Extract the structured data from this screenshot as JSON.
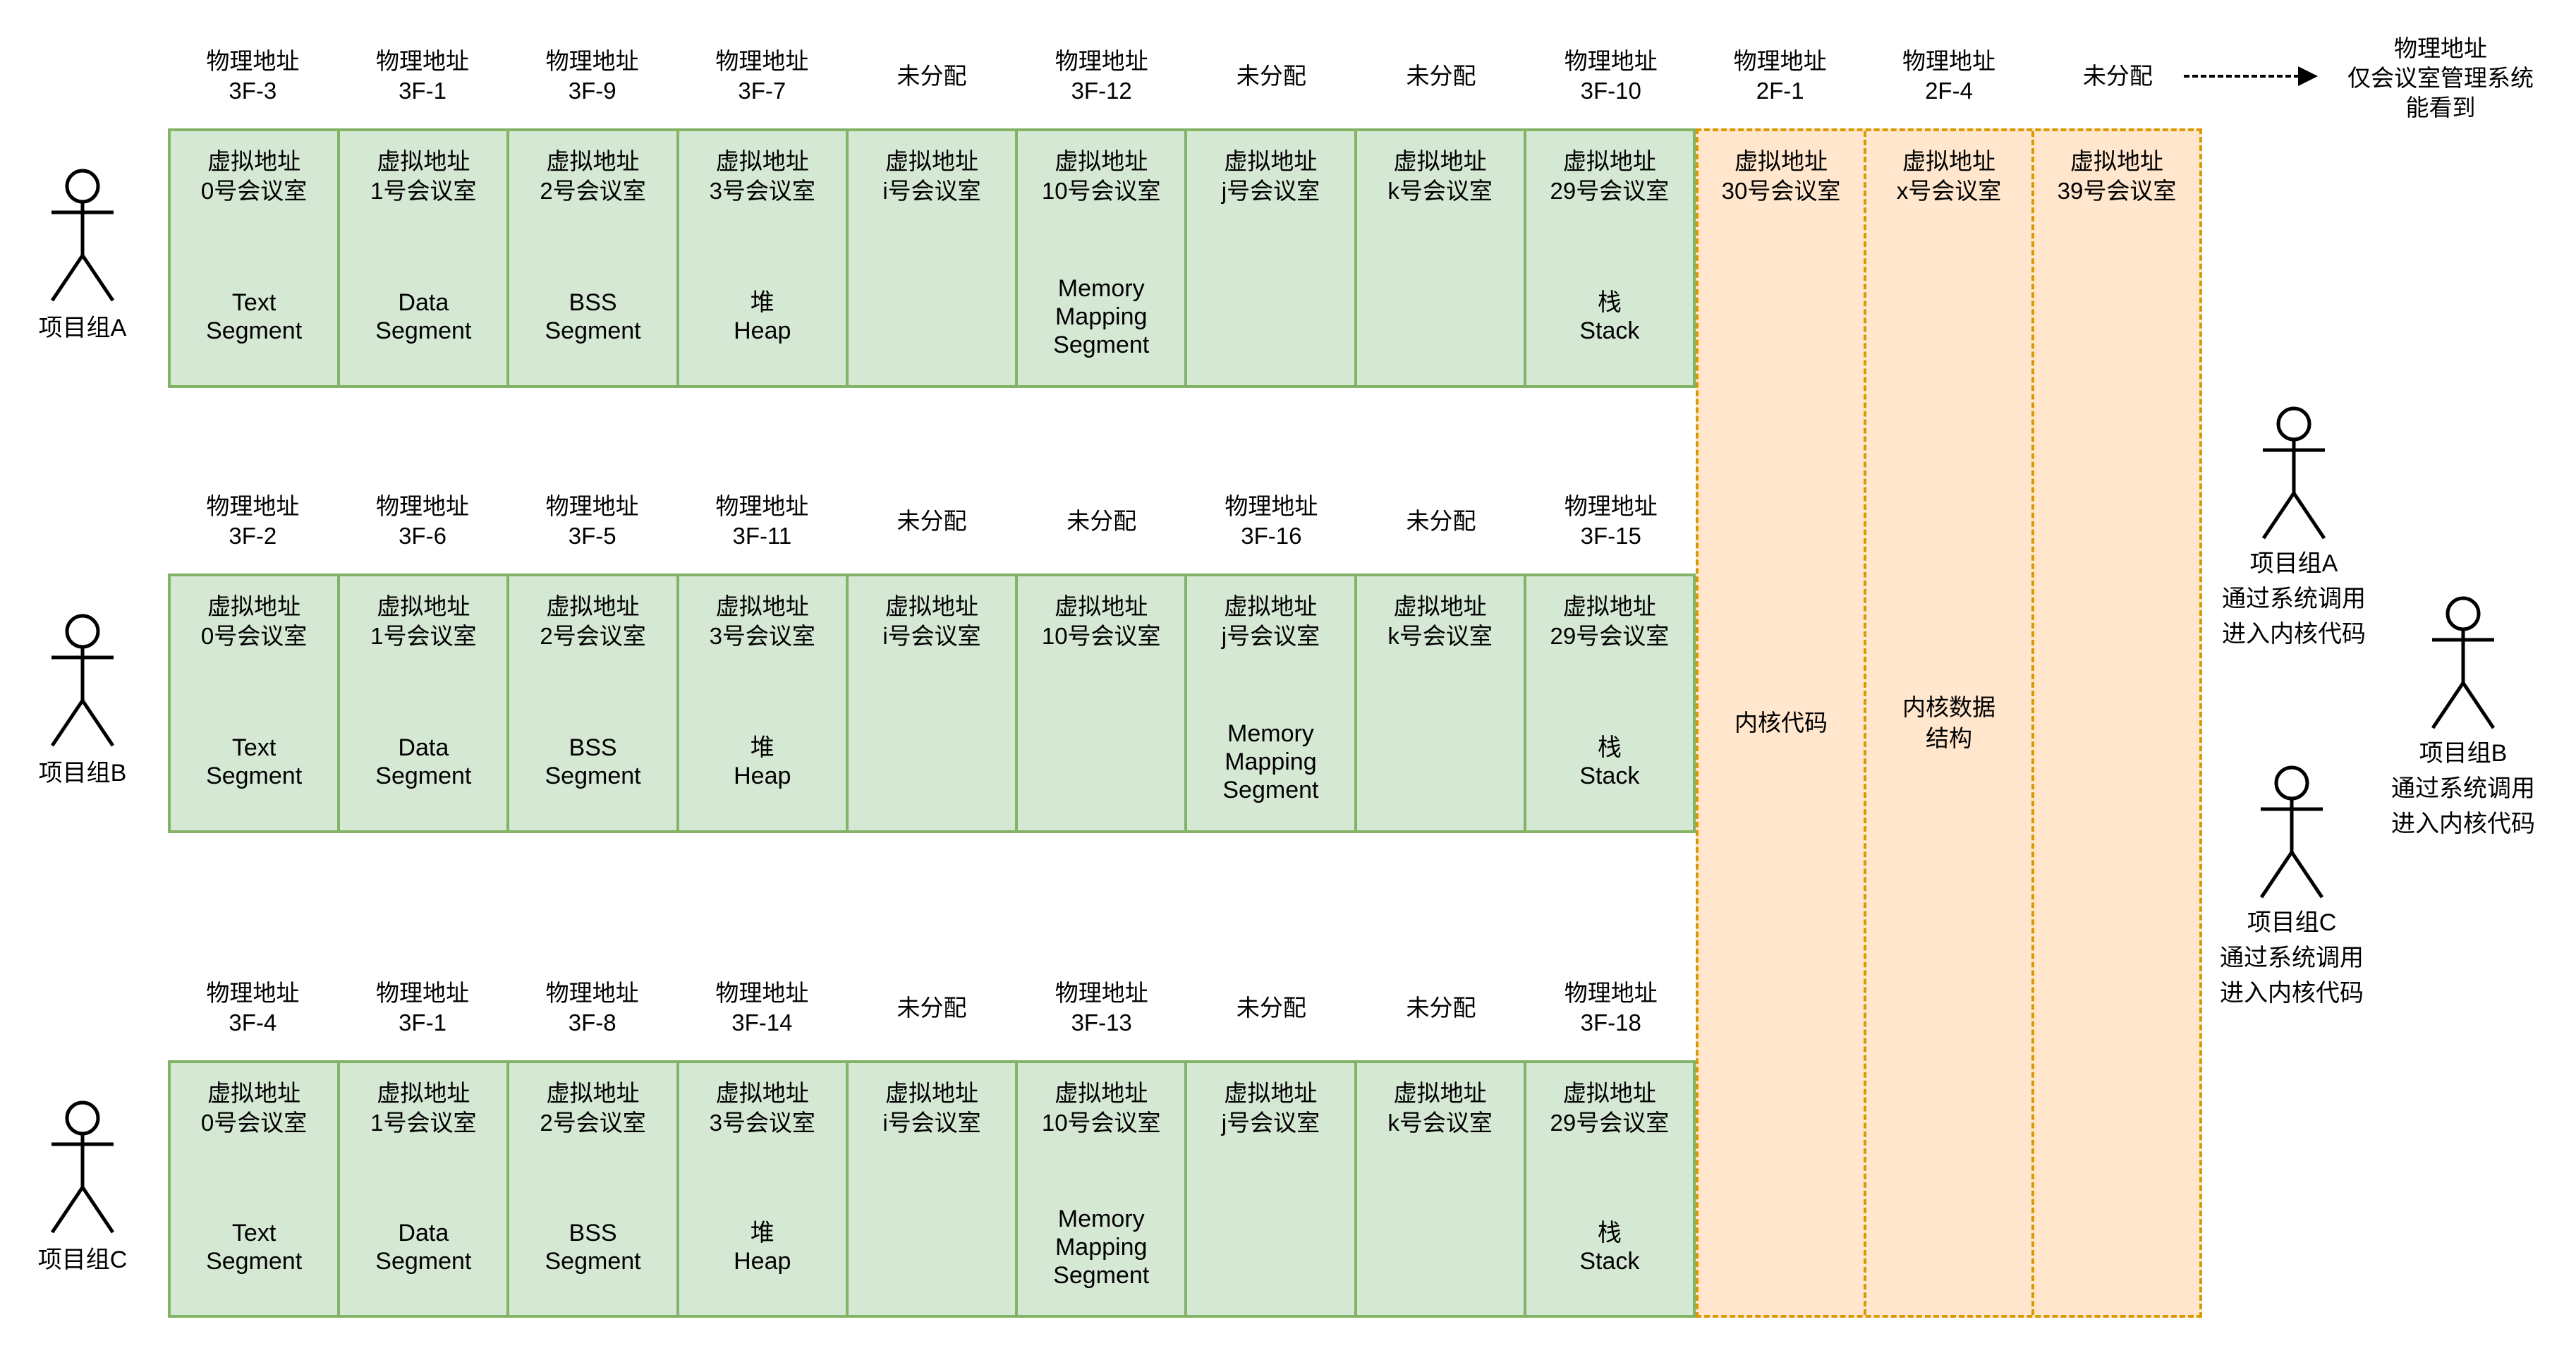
{
  "palette": {
    "process_fill": "#d5e8d4",
    "process_border": "#82b366",
    "kernel_fill": "#ffe6cc",
    "kernel_border": "#d79b00",
    "text_color": "#000000",
    "arrow_color": "#000000"
  },
  "left_actors": [
    {
      "label": "项目组A"
    },
    {
      "label": "项目组B"
    },
    {
      "label": "项目组C"
    }
  ],
  "rows": [
    {
      "columns": [
        {
          "physical": [
            "物理地址",
            "3F-3"
          ],
          "virtual": [
            "虚拟地址",
            "0号会议室"
          ],
          "segment": [
            "Text",
            "Segment"
          ]
        },
        {
          "physical": [
            "物理地址",
            "3F-1"
          ],
          "virtual": [
            "虚拟地址",
            "1号会议室"
          ],
          "segment": [
            "Data",
            "Segment"
          ]
        },
        {
          "physical": [
            "物理地址",
            "3F-9"
          ],
          "virtual": [
            "虚拟地址",
            "2号会议室"
          ],
          "segment": [
            "BSS",
            "Segment"
          ]
        },
        {
          "physical": [
            "物理地址",
            "3F-7"
          ],
          "virtual": [
            "虚拟地址",
            "3号会议室"
          ],
          "segment": [
            "堆",
            "Heap"
          ]
        },
        {
          "physical": [
            "未分配"
          ],
          "virtual": [
            "虚拟地址",
            "i号会议室"
          ],
          "segment": []
        },
        {
          "physical": [
            "物理地址",
            "3F-12"
          ],
          "virtual": [
            "虚拟地址",
            "10号会议室"
          ],
          "segment": [
            "Memory",
            "Mapping",
            "Segment"
          ]
        },
        {
          "physical": [
            "未分配"
          ],
          "virtual": [
            "虚拟地址",
            "j号会议室"
          ],
          "segment": []
        },
        {
          "physical": [
            "未分配"
          ],
          "virtual": [
            "虚拟地址",
            "k号会议室"
          ],
          "segment": []
        },
        {
          "physical": [
            "物理地址",
            "3F-10"
          ],
          "virtual": [
            "虚拟地址",
            "29号会议室"
          ],
          "segment": [
            "栈",
            "Stack"
          ]
        }
      ]
    },
    {
      "columns": [
        {
          "physical": [
            "物理地址",
            "3F-2"
          ],
          "virtual": [
            "虚拟地址",
            "0号会议室"
          ],
          "segment": [
            "Text",
            "Segment"
          ]
        },
        {
          "physical": [
            "物理地址",
            "3F-6"
          ],
          "virtual": [
            "虚拟地址",
            "1号会议室"
          ],
          "segment": [
            "Data",
            "Segment"
          ]
        },
        {
          "physical": [
            "物理地址",
            "3F-5"
          ],
          "virtual": [
            "虚拟地址",
            "2号会议室"
          ],
          "segment": [
            "BSS",
            "Segment"
          ]
        },
        {
          "physical": [
            "物理地址",
            "3F-11"
          ],
          "virtual": [
            "虚拟地址",
            "3号会议室"
          ],
          "segment": [
            "堆",
            "Heap"
          ]
        },
        {
          "physical": [
            "未分配"
          ],
          "virtual": [
            "虚拟地址",
            "i号会议室"
          ],
          "segment": []
        },
        {
          "physical": [
            "未分配"
          ],
          "virtual": [
            "虚拟地址",
            "10号会议室"
          ],
          "segment": []
        },
        {
          "physical": [
            "物理地址",
            "3F-16"
          ],
          "virtual": [
            "虚拟地址",
            "j号会议室"
          ],
          "segment": [
            "Memory",
            "Mapping",
            "Segment"
          ]
        },
        {
          "physical": [
            "未分配"
          ],
          "virtual": [
            "虚拟地址",
            "k号会议室"
          ],
          "segment": []
        },
        {
          "physical": [
            "物理地址",
            "3F-15"
          ],
          "virtual": [
            "虚拟地址",
            "29号会议室"
          ],
          "segment": [
            "栈",
            "Stack"
          ]
        }
      ]
    },
    {
      "columns": [
        {
          "physical": [
            "物理地址",
            "3F-4"
          ],
          "virtual": [
            "虚拟地址",
            "0号会议室"
          ],
          "segment": [
            "Text",
            "Segment"
          ]
        },
        {
          "physical": [
            "物理地址",
            "3F-1"
          ],
          "virtual": [
            "虚拟地址",
            "1号会议室"
          ],
          "segment": [
            "Data",
            "Segment"
          ]
        },
        {
          "physical": [
            "物理地址",
            "3F-8"
          ],
          "virtual": [
            "虚拟地址",
            "2号会议室"
          ],
          "segment": [
            "BSS",
            "Segment"
          ]
        },
        {
          "physical": [
            "物理地址",
            "3F-14"
          ],
          "virtual": [
            "虚拟地址",
            "3号会议室"
          ],
          "segment": [
            "堆",
            "Heap"
          ]
        },
        {
          "physical": [
            "未分配"
          ],
          "virtual": [
            "虚拟地址",
            "i号会议室"
          ],
          "segment": []
        },
        {
          "physical": [
            "物理地址",
            "3F-13"
          ],
          "virtual": [
            "虚拟地址",
            "10号会议室"
          ],
          "segment": [
            "Memory",
            "Mapping",
            "Segment"
          ]
        },
        {
          "physical": [
            "未分配"
          ],
          "virtual": [
            "虚拟地址",
            "j号会议室"
          ],
          "segment": []
        },
        {
          "physical": [
            "未分配"
          ],
          "virtual": [
            "虚拟地址",
            "k号会议室"
          ],
          "segment": []
        },
        {
          "physical": [
            "物理地址",
            "3F-18"
          ],
          "virtual": [
            "虚拟地址",
            "29号会议室"
          ],
          "segment": [
            "栈",
            "Stack"
          ]
        }
      ]
    }
  ],
  "kernel": {
    "columns": [
      {
        "physical": [
          "物理地址",
          "2F-1"
        ],
        "virtual": [
          "虚拟地址",
          "30号会议室"
        ],
        "body": [
          "内核代码"
        ]
      },
      {
        "physical": [
          "物理地址",
          "2F-4"
        ],
        "virtual": [
          "虚拟地址",
          "x号会议室"
        ],
        "body": [
          "内核数据",
          "结构"
        ]
      },
      {
        "physical": [
          "未分配"
        ],
        "virtual": [
          "虚拟地址",
          "39号会议室"
        ],
        "body": []
      }
    ]
  },
  "top_note": {
    "lines": [
      "物理地址",
      "仅会议室管理系统",
      "能看到"
    ]
  },
  "right_actors": [
    {
      "lines": [
        "项目组A",
        "通过系统调用",
        "进入内核代码"
      ]
    },
    {
      "lines": [
        "项目组B",
        "通过系统调用",
        "进入内核代码"
      ]
    },
    {
      "lines": [
        "项目组C",
        "通过系统调用",
        "进入内核代码"
      ]
    }
  ]
}
